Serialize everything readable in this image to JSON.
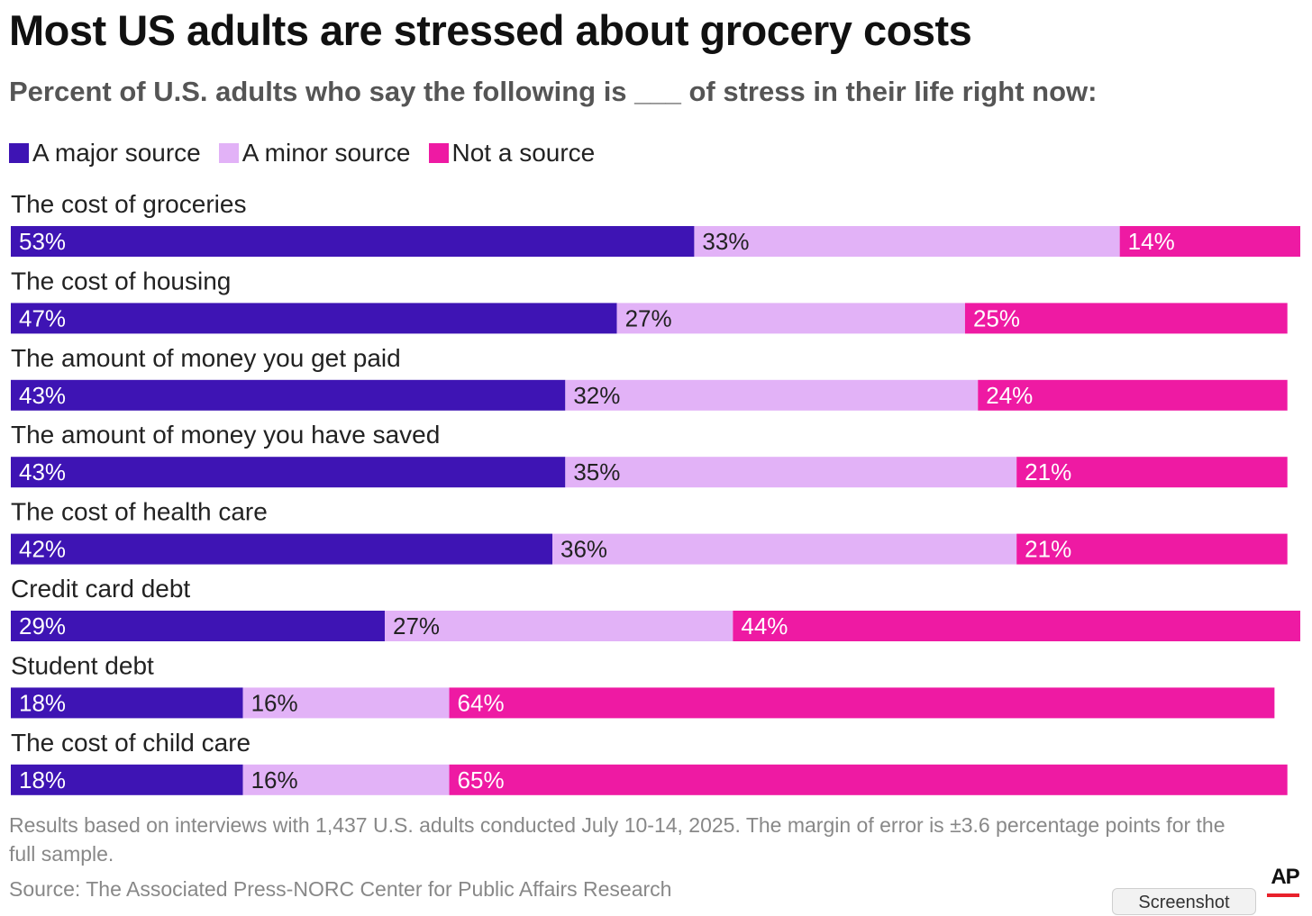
{
  "title": "Most US adults are stressed about grocery costs",
  "subtitle": "Percent of U.S. adults who say the following is ___ of stress in their life right now:",
  "legend": [
    {
      "label": "A major source",
      "color": "#3e14b4"
    },
    {
      "label": "A minor source",
      "color": "#e2b2f7"
    },
    {
      "label": "Not a source",
      "color": "#ee1aa3"
    }
  ],
  "chart_data": {
    "type": "bar",
    "orientation": "horizontal",
    "stacked": true,
    "title": "Most US adults are stressed about grocery costs",
    "subtitle": "Percent of U.S. adults who say the following is ___ of stress in their life right now:",
    "xlim": [
      0,
      100
    ],
    "grid": false,
    "legend_position": "top-left",
    "categories": [
      "The cost of groceries",
      "The cost of housing",
      "The amount of money you get paid",
      "The amount of money you have saved",
      "The cost of health care",
      "Credit card debt",
      "Student debt",
      "The cost of child care"
    ],
    "series": [
      {
        "name": "A major source",
        "color": "#3e14b4",
        "values": [
          53,
          47,
          43,
          43,
          42,
          29,
          18,
          18
        ],
        "label_color": "#ffffff"
      },
      {
        "name": "A minor source",
        "color": "#e2b2f7",
        "values": [
          33,
          27,
          32,
          35,
          36,
          27,
          16,
          16
        ],
        "label_color": "#222222"
      },
      {
        "name": "Not a source",
        "color": "#ee1aa3",
        "values": [
          14,
          25,
          24,
          21,
          21,
          44,
          64,
          65
        ],
        "label_color": "#ffffff"
      }
    ]
  },
  "footnote": "Results based on interviews with 1,437 U.S. adults conducted July 10-14, 2025. The margin of error is ±3.6 percentage points for the full sample.",
  "source": "Source: The Associated Press-NORC Center for Public Affairs Research",
  "logo_text": "AP",
  "screenshot_button": "Screenshot"
}
